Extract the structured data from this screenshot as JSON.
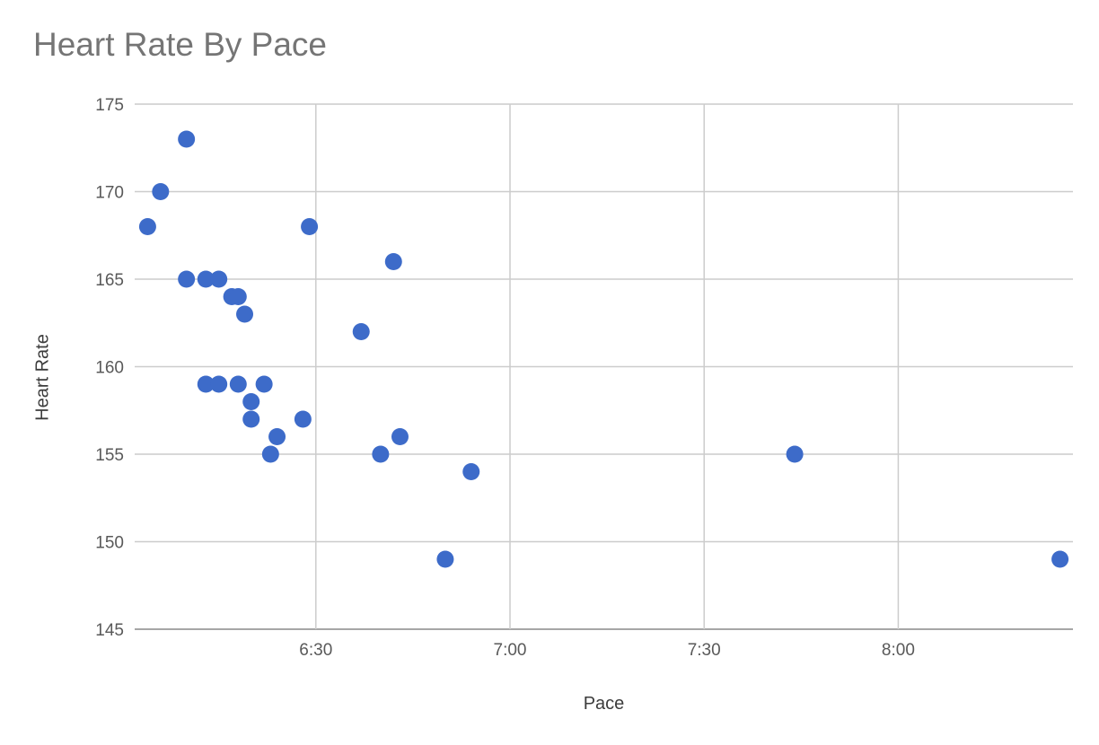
{
  "chart_data": {
    "type": "scatter",
    "title": "Heart Rate By Pace",
    "xlabel": "Pace",
    "ylabel": "Heart Rate",
    "grid": true,
    "legend": "none",
    "point_color": "#3D6BC9",
    "x_axis": {
      "tick_labels": [
        "6:30",
        "7:00",
        "7:30",
        "8:00"
      ],
      "tick_seconds": [
        390,
        420,
        450,
        480
      ],
      "domain_seconds": [
        362,
        507
      ],
      "domain_labels": [
        "6:02",
        "8:27"
      ]
    },
    "y_axis": {
      "tick_labels": [
        "175",
        "170",
        "165",
        "160",
        "155",
        "150",
        "145"
      ],
      "ticks": [
        175,
        170,
        165,
        160,
        155,
        150,
        145
      ],
      "domain": [
        145,
        175
      ]
    },
    "points": [
      {
        "pace": "6:04",
        "pace_sec": 364,
        "hr": 168
      },
      {
        "pace": "6:06",
        "pace_sec": 366,
        "hr": 170
      },
      {
        "pace": "6:10",
        "pace_sec": 370,
        "hr": 173
      },
      {
        "pace": "6:10",
        "pace_sec": 370,
        "hr": 165
      },
      {
        "pace": "6:13",
        "pace_sec": 373,
        "hr": 165
      },
      {
        "pace": "6:13",
        "pace_sec": 373,
        "hr": 159
      },
      {
        "pace": "6:15",
        "pace_sec": 375,
        "hr": 165
      },
      {
        "pace": "6:15",
        "pace_sec": 375,
        "hr": 159
      },
      {
        "pace": "6:17",
        "pace_sec": 377,
        "hr": 164
      },
      {
        "pace": "6:18",
        "pace_sec": 378,
        "hr": 164
      },
      {
        "pace": "6:18",
        "pace_sec": 378,
        "hr": 159
      },
      {
        "pace": "6:19",
        "pace_sec": 379,
        "hr": 163
      },
      {
        "pace": "6:20",
        "pace_sec": 380,
        "hr": 158
      },
      {
        "pace": "6:20",
        "pace_sec": 380,
        "hr": 157
      },
      {
        "pace": "6:22",
        "pace_sec": 382,
        "hr": 159
      },
      {
        "pace": "6:23",
        "pace_sec": 383,
        "hr": 155
      },
      {
        "pace": "6:24",
        "pace_sec": 384,
        "hr": 156
      },
      {
        "pace": "6:28",
        "pace_sec": 388,
        "hr": 157
      },
      {
        "pace": "6:29",
        "pace_sec": 389,
        "hr": 168
      },
      {
        "pace": "6:37",
        "pace_sec": 397,
        "hr": 162
      },
      {
        "pace": "6:40",
        "pace_sec": 400,
        "hr": 155
      },
      {
        "pace": "6:42",
        "pace_sec": 402,
        "hr": 166
      },
      {
        "pace": "6:43",
        "pace_sec": 403,
        "hr": 156
      },
      {
        "pace": "6:50",
        "pace_sec": 410,
        "hr": 149
      },
      {
        "pace": "6:54",
        "pace_sec": 414,
        "hr": 154
      },
      {
        "pace": "7:44",
        "pace_sec": 464,
        "hr": 155
      },
      {
        "pace": "8:25",
        "pace_sec": 505,
        "hr": 149
      }
    ]
  },
  "styles": {
    "background": "#ffffff",
    "title_color": "#757575",
    "tick_color": "#595959",
    "axis_title_color": "#3c3c3c",
    "grid_color": "#cccccc",
    "baseline_color": "#a6a6a6",
    "point_color": "#3D6BC9"
  }
}
